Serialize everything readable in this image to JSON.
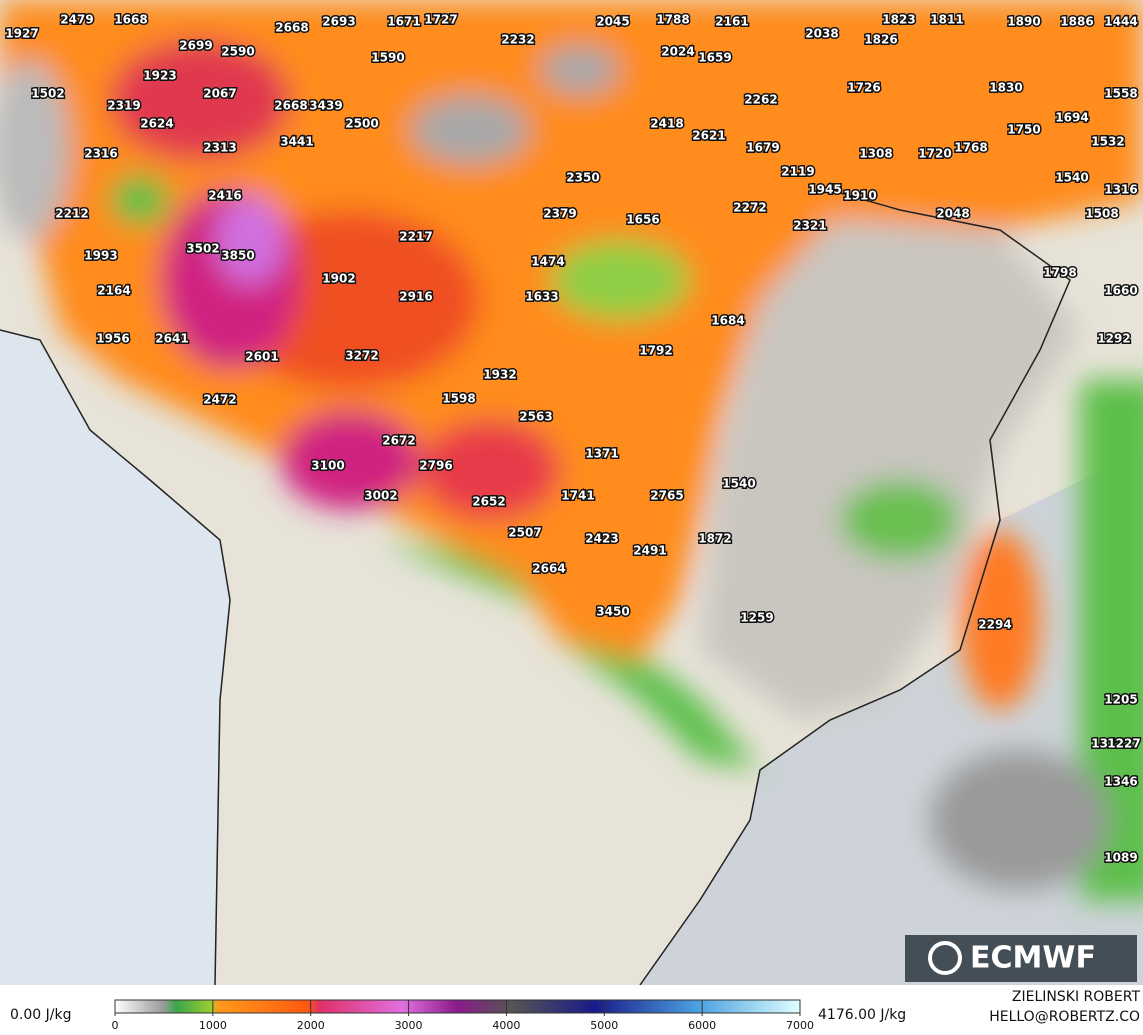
{
  "map": {
    "labels": [
      1927,
      2479,
      1668,
      2668,
      2693,
      1671,
      1727,
      2045,
      1788,
      2161,
      1823,
      1811,
      1890,
      1886,
      1444,
      2699,
      2590,
      2232,
      2024,
      2038,
      1826,
      1590,
      1659,
      1923,
      1502,
      2067,
      2319,
      2668,
      3439,
      1726,
      1830,
      1558,
      2262,
      2624,
      2500,
      2418,
      1750,
      1694,
      3441,
      2313,
      2316,
      2621,
      1679,
      1308,
      1720,
      1768,
      1532,
      2350,
      2119,
      1540,
      2416,
      1945,
      1910,
      1316,
      2212,
      2379,
      1656,
      2272,
      2321,
      2048,
      1508,
      2217,
      3502,
      3850,
      1993,
      1474,
      1798,
      1902,
      2164,
      2916,
      1633,
      1660,
      1684,
      1956,
      2641,
      1292,
      1792,
      2601,
      3272,
      1932,
      2472,
      1598,
      2563,
      2672,
      1371,
      2796,
      3100,
      1540,
      1741,
      2765,
      3002,
      2652,
      2507,
      2423,
      1872,
      2491,
      2664,
      3450,
      1259,
      2294,
      1205,
      1312,
      1227,
      1346,
      1089
    ]
  },
  "legend": {
    "min_label": "0.00 J/kg",
    "max_label": "4176.00 J/kg",
    "ticks": [
      0,
      1000,
      2000,
      3000,
      4000,
      5000,
      6000,
      7000
    ]
  },
  "logo": "ECMWF",
  "credit": {
    "name": "ZIELINSKI ROBERT",
    "contact": "HELLO@ROBERTZ.CO"
  }
}
